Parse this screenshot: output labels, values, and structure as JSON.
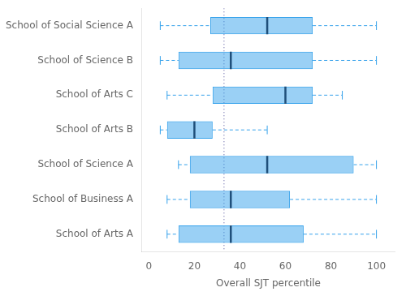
{
  "chart_data": {
    "type": "box",
    "orientation": "horizontal",
    "categories": [
      "School of Social Science A",
      "School of Science B",
      "School of Arts C",
      "School of Arts B",
      "School of Science A",
      "School of Business A",
      "School of Arts A"
    ],
    "values": [
      {
        "whislo": 5,
        "q1": 27,
        "med": 52,
        "q3": 72,
        "whishi": 100
      },
      {
        "whislo": 5,
        "q1": 13,
        "med": 36,
        "q3": 72,
        "whishi": 100
      },
      {
        "whislo": 8,
        "q1": 28,
        "med": 60,
        "q3": 72,
        "whishi": 85
      },
      {
        "whislo": 5,
        "q1": 8,
        "med": 20,
        "q3": 28,
        "whishi": 52
      },
      {
        "whislo": 13,
        "q1": 18,
        "med": 52,
        "q3": 90,
        "whishi": 100
      },
      {
        "whislo": 8,
        "q1": 18,
        "med": 36,
        "q3": 62,
        "whishi": 100
      },
      {
        "whislo": 8,
        "q1": 13,
        "med": 36,
        "q3": 68,
        "whishi": 100
      }
    ],
    "xlabel": "Overall SJT percentile",
    "xlim": [
      -3,
      108
    ],
    "xticks": [
      0,
      20,
      40,
      60,
      80,
      100
    ],
    "vline": {
      "x": 33,
      "color": "#8888bb",
      "line_style": "dotted"
    },
    "grid": false
  }
}
